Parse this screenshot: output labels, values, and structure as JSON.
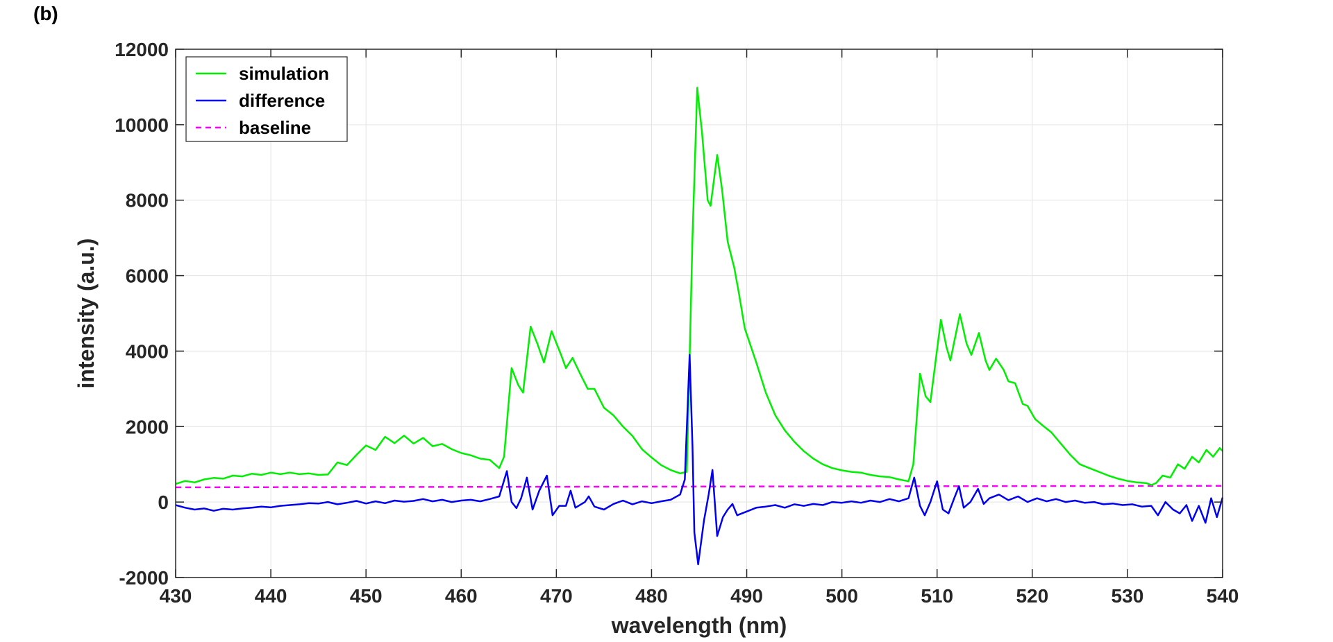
{
  "panel_label": "(b)",
  "chart_data": {
    "type": "line",
    "title": "",
    "xlabel": "wavelength (nm)",
    "ylabel": "intensity (a.u.)",
    "xlim": [
      430,
      540
    ],
    "ylim": [
      -2000,
      12000
    ],
    "xticks": [
      430,
      440,
      450,
      460,
      470,
      480,
      490,
      500,
      510,
      520,
      530,
      540
    ],
    "yticks": [
      -2000,
      0,
      2000,
      4000,
      6000,
      8000,
      10000,
      12000
    ],
    "grid": true,
    "legend_position": "top-left",
    "series": [
      {
        "name": "simulation",
        "color": "#00ee00",
        "style": "solid",
        "points": [
          [
            430,
            480
          ],
          [
            431,
            560
          ],
          [
            432,
            520
          ],
          [
            433,
            600
          ],
          [
            434,
            640
          ],
          [
            435,
            620
          ],
          [
            436,
            700
          ],
          [
            437,
            680
          ],
          [
            438,
            750
          ],
          [
            439,
            720
          ],
          [
            440,
            780
          ],
          [
            441,
            740
          ],
          [
            442,
            780
          ],
          [
            443,
            740
          ],
          [
            444,
            760
          ],
          [
            445,
            720
          ],
          [
            446,
            730
          ],
          [
            447,
            1050
          ],
          [
            448,
            980
          ],
          [
            449,
            1250
          ],
          [
            450,
            1500
          ],
          [
            451,
            1380
          ],
          [
            452,
            1730
          ],
          [
            453,
            1560
          ],
          [
            454,
            1760
          ],
          [
            455,
            1550
          ],
          [
            456,
            1700
          ],
          [
            457,
            1480
          ],
          [
            458,
            1540
          ],
          [
            459,
            1400
          ],
          [
            460,
            1300
          ],
          [
            461,
            1240
          ],
          [
            462,
            1150
          ],
          [
            463,
            1120
          ],
          [
            464,
            900
          ],
          [
            464.5,
            1200
          ],
          [
            465.3,
            3550
          ],
          [
            466,
            3100
          ],
          [
            466.5,
            2900
          ],
          [
            467.3,
            4650
          ],
          [
            468,
            4200
          ],
          [
            468.7,
            3700
          ],
          [
            469.5,
            4530
          ],
          [
            470.5,
            3900
          ],
          [
            471,
            3550
          ],
          [
            471.7,
            3820
          ],
          [
            472.5,
            3400
          ],
          [
            473.3,
            3000
          ],
          [
            474,
            3000
          ],
          [
            475,
            2500
          ],
          [
            476,
            2300
          ],
          [
            477,
            2000
          ],
          [
            478,
            1750
          ],
          [
            479,
            1400
          ],
          [
            480,
            1180
          ],
          [
            481,
            980
          ],
          [
            482,
            850
          ],
          [
            483,
            760
          ],
          [
            483.7,
            800
          ],
          [
            484,
            3800
          ],
          [
            484.3,
            7000
          ],
          [
            484.8,
            10980
          ],
          [
            485.3,
            9800
          ],
          [
            485.9,
            8000
          ],
          [
            486.2,
            7850
          ],
          [
            486.9,
            9200
          ],
          [
            487.4,
            8300
          ],
          [
            488,
            6900
          ],
          [
            488.7,
            6200
          ],
          [
            489.2,
            5500
          ],
          [
            489.8,
            4600
          ],
          [
            491,
            3700
          ],
          [
            492,
            2900
          ],
          [
            493,
            2300
          ],
          [
            494,
            1900
          ],
          [
            495,
            1600
          ],
          [
            496,
            1350
          ],
          [
            497,
            1150
          ],
          [
            498,
            1000
          ],
          [
            499,
            900
          ],
          [
            500,
            840
          ],
          [
            501,
            800
          ],
          [
            502,
            780
          ],
          [
            503,
            720
          ],
          [
            504,
            680
          ],
          [
            505,
            660
          ],
          [
            506,
            600
          ],
          [
            507,
            550
          ],
          [
            507.5,
            1000
          ],
          [
            508.2,
            3400
          ],
          [
            508.8,
            2800
          ],
          [
            509.3,
            2650
          ],
          [
            510.4,
            4830
          ],
          [
            511,
            4100
          ],
          [
            511.4,
            3750
          ],
          [
            512.4,
            4980
          ],
          [
            513.1,
            4200
          ],
          [
            513.6,
            3900
          ],
          [
            514.4,
            4480
          ],
          [
            515.1,
            3750
          ],
          [
            515.5,
            3500
          ],
          [
            516.2,
            3800
          ],
          [
            517,
            3500
          ],
          [
            517.5,
            3200
          ],
          [
            518.2,
            3150
          ],
          [
            519,
            2600
          ],
          [
            519.5,
            2550
          ],
          [
            520.3,
            2200
          ],
          [
            521,
            2050
          ],
          [
            522,
            1850
          ],
          [
            523,
            1550
          ],
          [
            524,
            1250
          ],
          [
            525,
            1000
          ],
          [
            526,
            900
          ],
          [
            527,
            800
          ],
          [
            528,
            700
          ],
          [
            529,
            620
          ],
          [
            530,
            560
          ],
          [
            531,
            520
          ],
          [
            532,
            500
          ],
          [
            532.5,
            450
          ],
          [
            533,
            500
          ],
          [
            533.7,
            700
          ],
          [
            534.5,
            650
          ],
          [
            535.3,
            1000
          ],
          [
            536,
            880
          ],
          [
            536.8,
            1200
          ],
          [
            537.5,
            1050
          ],
          [
            538.3,
            1380
          ],
          [
            539,
            1200
          ],
          [
            539.7,
            1430
          ],
          [
            540,
            1350
          ]
        ]
      },
      {
        "name": "difference",
        "color": "#0000ee",
        "style": "solid",
        "points": [
          [
            430,
            -80
          ],
          [
            431,
            -150
          ],
          [
            432,
            -200
          ],
          [
            433,
            -170
          ],
          [
            434,
            -230
          ],
          [
            435,
            -180
          ],
          [
            436,
            -200
          ],
          [
            437,
            -170
          ],
          [
            438,
            -150
          ],
          [
            439,
            -120
          ],
          [
            440,
            -140
          ],
          [
            441,
            -100
          ],
          [
            442,
            -80
          ],
          [
            443,
            -60
          ],
          [
            444,
            -30
          ],
          [
            445,
            -40
          ],
          [
            446,
            0
          ],
          [
            447,
            -60
          ],
          [
            448,
            -20
          ],
          [
            449,
            30
          ],
          [
            450,
            -40
          ],
          [
            451,
            20
          ],
          [
            452,
            -30
          ],
          [
            453,
            40
          ],
          [
            454,
            10
          ],
          [
            455,
            30
          ],
          [
            456,
            80
          ],
          [
            457,
            20
          ],
          [
            458,
            60
          ],
          [
            459,
            0
          ],
          [
            460,
            40
          ],
          [
            461,
            60
          ],
          [
            462,
            20
          ],
          [
            463,
            80
          ],
          [
            464,
            150
          ],
          [
            464.8,
            820
          ],
          [
            465.3,
            0
          ],
          [
            465.8,
            -160
          ],
          [
            466.3,
            100
          ],
          [
            466.9,
            650
          ],
          [
            467.5,
            -200
          ],
          [
            468.2,
            300
          ],
          [
            469,
            700
          ],
          [
            469.6,
            -350
          ],
          [
            470.3,
            -100
          ],
          [
            471,
            -100
          ],
          [
            471.5,
            300
          ],
          [
            472,
            -150
          ],
          [
            473,
            0
          ],
          [
            473.4,
            150
          ],
          [
            474,
            -120
          ],
          [
            475,
            -200
          ],
          [
            476,
            -50
          ],
          [
            477,
            40
          ],
          [
            478,
            -60
          ],
          [
            479,
            20
          ],
          [
            480,
            -30
          ],
          [
            481,
            20
          ],
          [
            482,
            60
          ],
          [
            483,
            200
          ],
          [
            483.5,
            600
          ],
          [
            484,
            3900
          ],
          [
            484.3,
            1500
          ],
          [
            484.5,
            -800
          ],
          [
            484.9,
            -1650
          ],
          [
            485.5,
            -500
          ],
          [
            486,
            200
          ],
          [
            486.4,
            850
          ],
          [
            486.9,
            -900
          ],
          [
            487.5,
            -400
          ],
          [
            488,
            -200
          ],
          [
            488.5,
            -50
          ],
          [
            489,
            -350
          ],
          [
            490,
            -250
          ],
          [
            491,
            -150
          ],
          [
            492,
            -120
          ],
          [
            493,
            -80
          ],
          [
            494,
            -150
          ],
          [
            495,
            -60
          ],
          [
            496,
            -100
          ],
          [
            497,
            -50
          ],
          [
            498,
            -80
          ],
          [
            499,
            0
          ],
          [
            500,
            -20
          ],
          [
            501,
            20
          ],
          [
            502,
            -20
          ],
          [
            503,
            40
          ],
          [
            504,
            0
          ],
          [
            505,
            80
          ],
          [
            506,
            20
          ],
          [
            507,
            100
          ],
          [
            507.6,
            650
          ],
          [
            508.2,
            -100
          ],
          [
            508.7,
            -350
          ],
          [
            509.3,
            0
          ],
          [
            510,
            550
          ],
          [
            510.6,
            -200
          ],
          [
            511.2,
            -300
          ],
          [
            511.8,
            100
          ],
          [
            512.3,
            420
          ],
          [
            512.8,
            -150
          ],
          [
            513.5,
            0
          ],
          [
            514.3,
            350
          ],
          [
            514.9,
            -50
          ],
          [
            515.5,
            100
          ],
          [
            516.5,
            200
          ],
          [
            517.5,
            50
          ],
          [
            518.5,
            150
          ],
          [
            519.5,
            0
          ],
          [
            520.5,
            100
          ],
          [
            521.5,
            20
          ],
          [
            522.5,
            80
          ],
          [
            523.5,
            0
          ],
          [
            524.5,
            40
          ],
          [
            525.5,
            -20
          ],
          [
            526.5,
            0
          ],
          [
            527.5,
            -60
          ],
          [
            528.5,
            -40
          ],
          [
            529.5,
            -80
          ],
          [
            530.5,
            -60
          ],
          [
            531.5,
            -120
          ],
          [
            532.5,
            -100
          ],
          [
            533.2,
            -350
          ],
          [
            534,
            0
          ],
          [
            534.8,
            -200
          ],
          [
            535.5,
            -300
          ],
          [
            536.2,
            -80
          ],
          [
            536.8,
            -500
          ],
          [
            537.5,
            -100
          ],
          [
            538.2,
            -550
          ],
          [
            538.8,
            100
          ],
          [
            539.4,
            -400
          ],
          [
            540,
            120
          ]
        ]
      },
      {
        "name": "baseline",
        "color": "#ff00ff",
        "style": "dashed",
        "points": [
          [
            430,
            390
          ],
          [
            540,
            430
          ]
        ]
      }
    ]
  }
}
